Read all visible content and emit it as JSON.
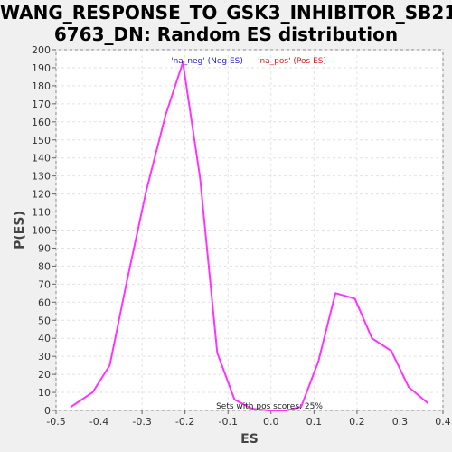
{
  "chart_data": {
    "type": "line",
    "title_lines": [
      "WANG_RESPONSE_TO_GSK3_INHIBITOR_SB21",
      "6763_DN: Random ES distribution"
    ],
    "xlabel": "ES",
    "ylabel": "P(ES)",
    "xlim": [
      -0.5,
      0.4
    ],
    "ylim": [
      0,
      200
    ],
    "xticks": [
      -0.5,
      -0.4,
      -0.3,
      -0.2,
      -0.1,
      0.0,
      0.1,
      0.2,
      0.3,
      0.4
    ],
    "xtick_labels": [
      "-0.5",
      "-0.4",
      "-0.3",
      "-0.2",
      "-0.1",
      "0.0",
      "0.1",
      "0.2",
      "0.3",
      "0.4"
    ],
    "yticks": [
      0,
      10,
      20,
      30,
      40,
      50,
      60,
      70,
      80,
      90,
      100,
      110,
      120,
      130,
      140,
      150,
      160,
      170,
      180,
      190,
      200
    ],
    "grid": true,
    "legend": [
      {
        "label": "'na_neg' (Neg ES)",
        "color": "#2222dd"
      },
      {
        "label": "'na_pos' (Pos ES)",
        "color": "#dd2222"
      }
    ],
    "annotation": "Sets with pos scores: 25%",
    "series": [
      {
        "color": "#ff33ff",
        "x": [
          -0.465,
          -0.415,
          -0.375,
          -0.335,
          -0.29,
          -0.245,
          -0.205,
          -0.165,
          -0.125,
          -0.085,
          -0.045,
          -0.005,
          0.035,
          0.07,
          0.11,
          0.15,
          0.195,
          0.235,
          0.28,
          0.32,
          0.365
        ],
        "y": [
          2,
          10,
          25,
          72,
          122,
          164,
          193,
          129,
          32,
          6,
          1,
          0,
          0,
          2,
          27,
          65,
          62,
          40,
          33,
          13,
          4
        ]
      }
    ]
  }
}
